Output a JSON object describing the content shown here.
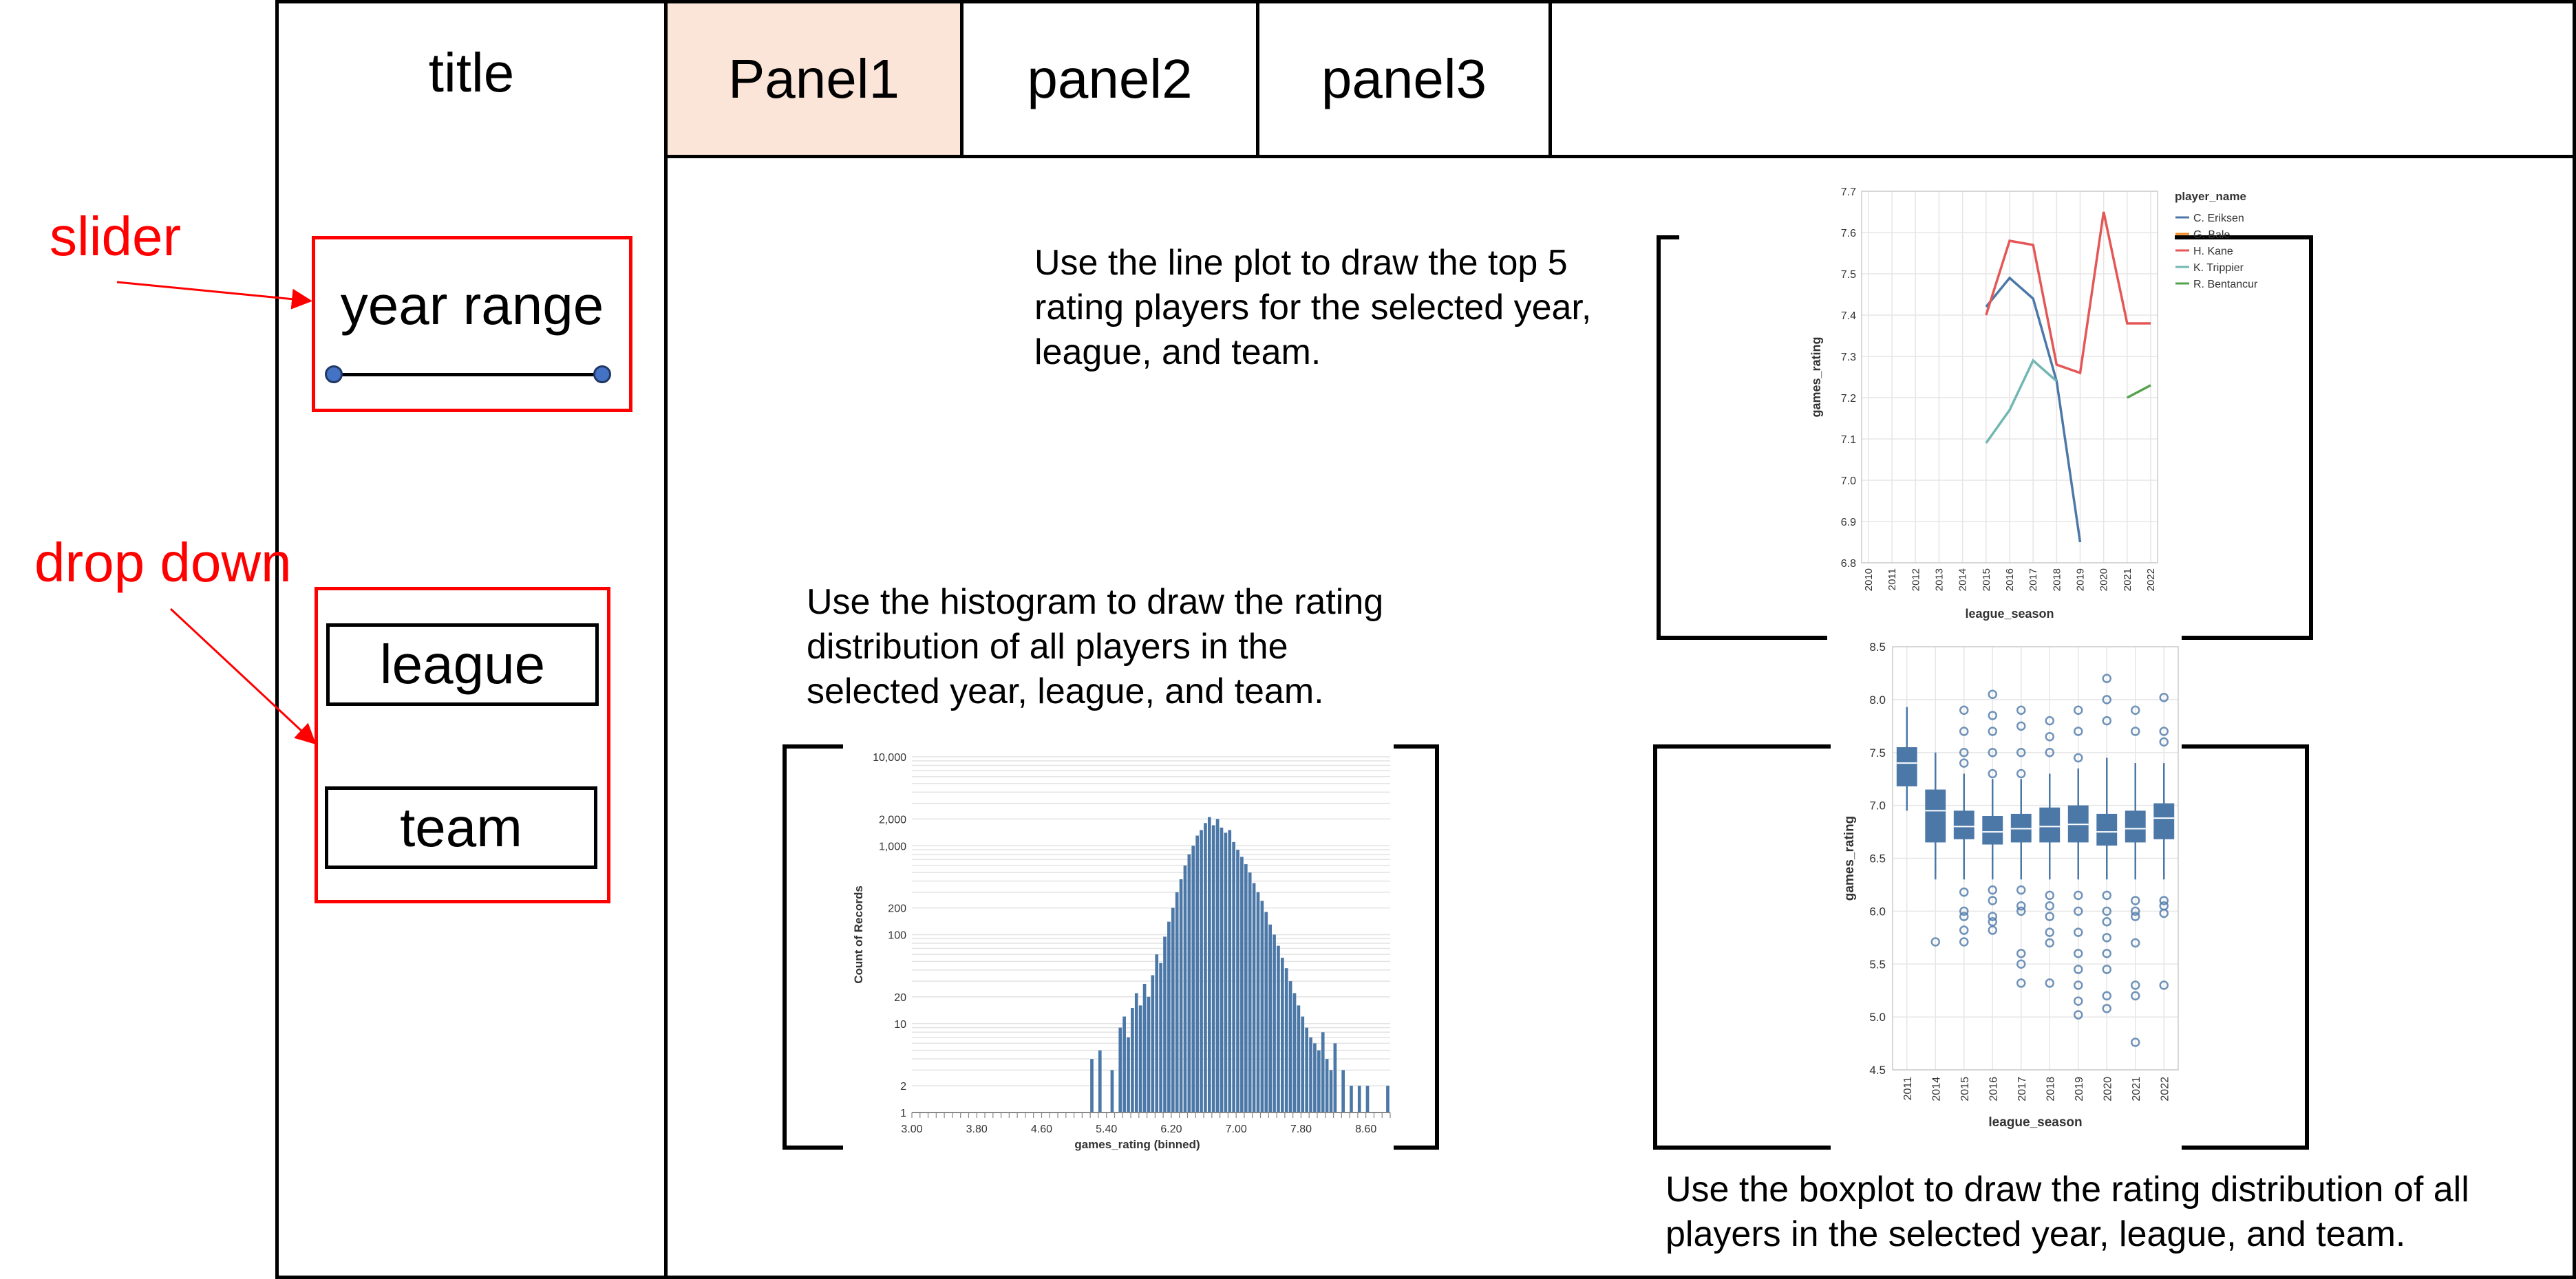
{
  "sidebar": {
    "title": "title",
    "slider_label": "year range",
    "dropdowns": [
      "league",
      "team"
    ]
  },
  "tabs": [
    {
      "label": "Panel1",
      "active": true
    },
    {
      "label": "panel2",
      "active": false
    },
    {
      "label": "panel3",
      "active": false
    }
  ],
  "annotations": {
    "slider": "slider",
    "dropdown": "drop down"
  },
  "descriptions": {
    "line": "Use the line plot to draw the top 5 rating players for the selected year, league, and team.",
    "histogram": "Use the histogram to draw the rating distribution of all players in the selected year, league, and team.",
    "boxplot": "Use the boxplot to draw the rating distribution of all players in the selected year, league, and team."
  },
  "colors": {
    "annotation": "#ff0000",
    "active_tab": "#fbe5d8",
    "chart_blue": "#4c78a8",
    "chart_orange": "#f58518",
    "chart_red": "#e45756",
    "chart_teal": "#72b7b2",
    "chart_green": "#54a24b"
  },
  "chart_data": [
    {
      "type": "line",
      "xlabel": "league_season",
      "ylabel": "games_rating",
      "ylim": [
        6.8,
        7.7
      ],
      "yticks": [
        "6.8",
        "6.9",
        "7.0",
        "7.1",
        "7.2",
        "7.3",
        "7.4",
        "7.5",
        "7.6",
        "7.7"
      ],
      "categories": [
        "2010",
        "2011",
        "2012",
        "2013",
        "2014",
        "2015",
        "2016",
        "2017",
        "2018",
        "2019",
        "2020",
        "2021",
        "2022"
      ],
      "legend_title": "player_name",
      "legend_position": "top-right",
      "series": [
        {
          "name": "C. Eriksen",
          "color": "#4c78a8",
          "points": [
            [
              "2015",
              7.42
            ],
            [
              "2016",
              7.49
            ],
            [
              "2017",
              7.44
            ],
            [
              "2018",
              7.24
            ],
            [
              "2019",
              6.85
            ]
          ]
        },
        {
          "name": "G. Bale",
          "color": "#f58518",
          "points": []
        },
        {
          "name": "H. Kane",
          "color": "#e45756",
          "points": [
            [
              "2015",
              7.4
            ],
            [
              "2016",
              7.58
            ],
            [
              "2017",
              7.57
            ],
            [
              "2018",
              7.28
            ],
            [
              "2019",
              7.26
            ],
            [
              "2020",
              7.65
            ],
            [
              "2021",
              7.38
            ],
            [
              "2022",
              7.38
            ]
          ]
        },
        {
          "name": "K. Trippier",
          "color": "#72b7b2",
          "points": [
            [
              "2015",
              7.09
            ],
            [
              "2016",
              7.17
            ],
            [
              "2017",
              7.29
            ],
            [
              "2018",
              7.24
            ]
          ]
        },
        {
          "name": "R. Bentancur",
          "color": "#54a24b",
          "points": [
            [
              "2021",
              7.2
            ],
            [
              "2022",
              7.23
            ]
          ]
        }
      ]
    },
    {
      "type": "bar",
      "xlabel": "games_rating (binned)",
      "ylabel": "Count of Records",
      "y_scale": "log",
      "ylim": [
        1,
        10000
      ],
      "yticks": [
        "1",
        "2",
        "10",
        "20",
        "100",
        "200",
        "1,000",
        "2,000",
        "10,000"
      ],
      "xticks": [
        "3.00",
        "3.80",
        "4.60",
        "5.40",
        "6.20",
        "7.00",
        "7.80",
        "8.60"
      ],
      "xlim": [
        3.0,
        8.9
      ],
      "bin_width": 0.05,
      "bins": [
        [
          5.2,
          4
        ],
        [
          5.3,
          5
        ],
        [
          5.45,
          3
        ],
        [
          5.55,
          9
        ],
        [
          5.6,
          12
        ],
        [
          5.65,
          7
        ],
        [
          5.7,
          15
        ],
        [
          5.75,
          22
        ],
        [
          5.8,
          16
        ],
        [
          5.85,
          28
        ],
        [
          5.9,
          20
        ],
        [
          5.95,
          35
        ],
        [
          6.0,
          60
        ],
        [
          6.05,
          48
        ],
        [
          6.1,
          95
        ],
        [
          6.15,
          140
        ],
        [
          6.2,
          200
        ],
        [
          6.25,
          300
        ],
        [
          6.3,
          420
        ],
        [
          6.35,
          600
        ],
        [
          6.4,
          800
        ],
        [
          6.45,
          1000
        ],
        [
          6.5,
          1300
        ],
        [
          6.55,
          1500
        ],
        [
          6.6,
          1800
        ],
        [
          6.65,
          2100
        ],
        [
          6.7,
          1700
        ],
        [
          6.75,
          2000
        ],
        [
          6.8,
          1600
        ],
        [
          6.85,
          1400
        ],
        [
          6.9,
          1500
        ],
        [
          6.95,
          1100
        ],
        [
          7.0,
          900
        ],
        [
          7.05,
          750
        ],
        [
          7.1,
          620
        ],
        [
          7.15,
          500
        ],
        [
          7.2,
          380
        ],
        [
          7.25,
          300
        ],
        [
          7.3,
          240
        ],
        [
          7.35,
          180
        ],
        [
          7.4,
          130
        ],
        [
          7.45,
          100
        ],
        [
          7.5,
          75
        ],
        [
          7.55,
          55
        ],
        [
          7.6,
          42
        ],
        [
          7.65,
          30
        ],
        [
          7.7,
          22
        ],
        [
          7.75,
          16
        ],
        [
          7.8,
          12
        ],
        [
          7.85,
          9
        ],
        [
          7.9,
          7
        ],
        [
          7.95,
          6
        ],
        [
          8.0,
          5
        ],
        [
          8.05,
          8
        ],
        [
          8.1,
          4
        ],
        [
          8.15,
          3
        ],
        [
          8.2,
          6
        ],
        [
          8.3,
          3
        ],
        [
          8.4,
          2
        ],
        [
          8.5,
          2
        ],
        [
          8.6,
          2
        ],
        [
          8.85,
          2
        ]
      ]
    },
    {
      "type": "boxplot",
      "xlabel": "league_season",
      "ylabel": "games_rating",
      "ylim": [
        4.5,
        8.5
      ],
      "yticks": [
        "4.5",
        "5.0",
        "5.5",
        "6.0",
        "6.5",
        "7.0",
        "7.5",
        "8.0",
        "8.5"
      ],
      "categories": [
        "2011",
        "2014",
        "2015",
        "2016",
        "2017",
        "2018",
        "2019",
        "2020",
        "2021",
        "2022"
      ],
      "boxes": [
        {
          "min": 6.95,
          "q1": 7.18,
          "median": 7.4,
          "q3": 7.55,
          "max": 7.93,
          "outliers": []
        },
        {
          "min": 6.3,
          "q1": 6.65,
          "median": 6.95,
          "q3": 7.15,
          "max": 7.5,
          "outliers": [
            5.71
          ]
        },
        {
          "min": 6.3,
          "q1": 6.68,
          "median": 6.8,
          "q3": 6.95,
          "max": 7.3,
          "outliers": [
            7.9,
            7.7,
            7.5,
            7.4,
            6.18,
            6.0,
            5.95,
            5.82,
            5.71
          ]
        },
        {
          "min": 6.3,
          "q1": 6.63,
          "median": 6.75,
          "q3": 6.9,
          "max": 7.25,
          "outliers": [
            8.05,
            7.85,
            7.7,
            7.5,
            7.3,
            6.2,
            6.1,
            5.95,
            5.9,
            5.82
          ]
        },
        {
          "min": 6.3,
          "q1": 6.65,
          "median": 6.78,
          "q3": 6.92,
          "max": 7.25,
          "outliers": [
            7.9,
            7.75,
            7.5,
            7.3,
            6.2,
            6.05,
            6.0,
            5.6,
            5.5,
            5.32
          ]
        },
        {
          "min": 6.3,
          "q1": 6.65,
          "median": 6.8,
          "q3": 6.98,
          "max": 7.3,
          "outliers": [
            7.8,
            7.65,
            7.5,
            6.15,
            6.05,
            5.95,
            5.8,
            5.7,
            5.32
          ]
        },
        {
          "min": 6.3,
          "q1": 6.65,
          "median": 6.82,
          "q3": 7.0,
          "max": 7.35,
          "outliers": [
            7.9,
            7.7,
            7.45,
            6.15,
            6.0,
            5.8,
            5.6,
            5.45,
            5.3,
            5.15,
            5.02
          ]
        },
        {
          "min": 6.3,
          "q1": 6.62,
          "median": 6.75,
          "q3": 6.92,
          "max": 7.45,
          "outliers": [
            8.2,
            8.0,
            7.8,
            6.15,
            6.0,
            5.9,
            5.75,
            5.6,
            5.45,
            5.2,
            5.08
          ]
        },
        {
          "min": 6.3,
          "q1": 6.65,
          "median": 6.78,
          "q3": 6.95,
          "max": 7.4,
          "outliers": [
            7.9,
            7.7,
            6.1,
            6.0,
            5.95,
            5.7,
            5.3,
            5.2,
            4.76
          ]
        },
        {
          "min": 6.3,
          "q1": 6.68,
          "median": 6.88,
          "q3": 7.02,
          "max": 7.4,
          "outliers": [
            8.02,
            7.7,
            7.6,
            6.1,
            6.05,
            5.98,
            5.3
          ]
        }
      ]
    }
  ]
}
